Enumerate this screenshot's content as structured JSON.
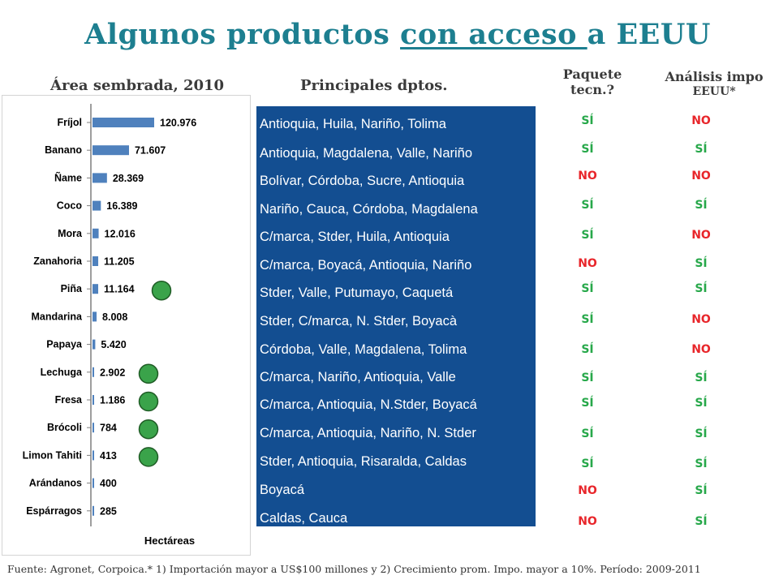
{
  "title": {
    "prefix": "Algunos productos ",
    "underlined": "con acceso ",
    "suffix": "a EEUU"
  },
  "headers": {
    "area": "Área sembrada, 2010",
    "dptos": "Principales dptos.",
    "paquete_1": "Paquete",
    "paquete_2": "tecn.?",
    "analisis_1": "Análisis impo",
    "analisis_2": "EEUU*"
  },
  "colors": {
    "title": "#1d7f90",
    "bar": "#4f81bd",
    "dept_bg": "#134e91",
    "si": "#27a84a",
    "no": "#e8262b",
    "marker": "#3aa34a"
  },
  "chart_data": {
    "type": "bar",
    "orientation": "horizontal",
    "categories": [
      "Fríjol",
      "Banano",
      "Ñame",
      "Coco",
      "Mora",
      "Zanahoria",
      "Piña",
      "Mandarina",
      "Papaya",
      "Lechuga",
      "Fresa",
      "Brócoli",
      "Limon Tahiti",
      "Arándanos",
      "Espárragos"
    ],
    "values": [
      120976,
      71607,
      28369,
      16389,
      12016,
      11205,
      11164,
      8008,
      5420,
      2902,
      1186,
      784,
      413,
      400,
      285
    ],
    "data_labels": [
      "120.976",
      "71.607",
      "28.369",
      "16.389",
      "12.016",
      "11.205",
      "11.164",
      "8.008",
      "5.420",
      "2.902",
      "1.186",
      "784",
      "413",
      "400",
      "285"
    ],
    "xlabel": "Hectáreas",
    "xlim": [
      0,
      270000
    ],
    "markers": [
      "Piña",
      "Lechuga",
      "Fresa",
      "Brócoli",
      "Limon Tahiti"
    ]
  },
  "rows": [
    {
      "dptos": "Antioquia, Huila, Nariño, Tolima",
      "paquete": "SÍ",
      "analisis": "NO"
    },
    {
      "dptos": "Antioquia, Magdalena, Valle, Nariño",
      "paquete": "SÍ",
      "analisis": "SÍ"
    },
    {
      "dptos": "Bolívar, Córdoba, Sucre, Antioquia",
      "paquete": "NO",
      "analisis": "NO"
    },
    {
      "dptos": "Nariño, Cauca, Córdoba, Magdalena",
      "paquete": "SÍ",
      "analisis": "SÍ"
    },
    {
      "dptos": "C/marca, Stder, Huila, Antioquia",
      "paquete": "SÍ",
      "analisis": "NO"
    },
    {
      "dptos": "C/marca, Boyacá, Antioquia, Nariño",
      "paquete": "NO",
      "analisis": "SÍ"
    },
    {
      "dptos": "Stder, Valle, Putumayo, Caquetá",
      "paquete": "SÍ",
      "analisis": "SÍ"
    },
    {
      "dptos": "Stder, C/marca, N. Stder, Boyacà",
      "paquete": "SÍ",
      "analisis": "NO"
    },
    {
      "dptos": "Córdoba, Valle, Magdalena, Tolima",
      "paquete": "SÍ",
      "analisis": "NO"
    },
    {
      "dptos": "C/marca, Nariño, Antioquia, Valle",
      "paquete": "SÍ",
      "analisis": "SÍ"
    },
    {
      "dptos": "C/marca, Antioquia, N.Stder, Boyacá",
      "paquete": "SÍ",
      "analisis": "SÍ"
    },
    {
      "dptos": "C/marca, Antioquia, Nariño, N. Stder",
      "paquete": "SÍ",
      "analisis": "SÍ"
    },
    {
      "dptos": "Stder, Antioquia, Risaralda, Caldas",
      "paquete": "SÍ",
      "analisis": "SÍ"
    },
    {
      "dptos": "Boyacá",
      "paquete": "NO",
      "analisis": "SÍ"
    },
    {
      "dptos": "Caldas, Cauca",
      "paquete": "NO",
      "analisis": "SÍ"
    }
  ],
  "footer": "Fuente: Agronet, Corpoica.* 1) Importación mayor a US$100 millones y 2) Crecimiento prom. Impo. mayor a 10%. Período: 2009-2011"
}
